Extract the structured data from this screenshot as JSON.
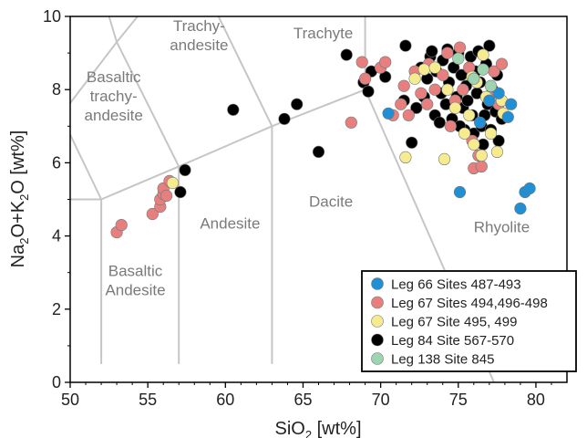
{
  "chart_data": {
    "type": "scatter",
    "title": "",
    "x_axis": {
      "label_main": "SiO",
      "label_sub": "2",
      "label_tail": " [wt%]",
      "min": 50,
      "max": 82,
      "ticks": [
        50,
        55,
        60,
        65,
        70,
        75,
        80
      ],
      "tick_labels": [
        "50",
        "55",
        "60",
        "65",
        "70",
        "75",
        "80"
      ]
    },
    "y_axis": {
      "label_parts": [
        "Na",
        "2",
        "O+K",
        "2",
        "O [wt%]"
      ],
      "min": 0,
      "max": 10,
      "ticks": [
        0,
        2,
        4,
        6,
        8,
        10
      ],
      "tick_labels": [
        "0",
        "2",
        "4",
        "6",
        "8",
        "10"
      ]
    },
    "tas_boundaries": [
      [
        [
          52,
          0.5
        ],
        [
          52,
          5
        ],
        [
          57,
          5.9
        ],
        [
          63,
          7
        ],
        [
          69,
          8
        ],
        [
          69,
          10
        ]
      ],
      [
        [
          50,
          5
        ],
        [
          52,
          5
        ]
      ],
      [
        [
          57,
          0.5
        ],
        [
          57,
          5.9
        ]
      ],
      [
        [
          63,
          0.5
        ],
        [
          63,
          7
        ]
      ],
      [
        [
          77.3,
          0
        ],
        [
          69,
          8
        ]
      ],
      [
        [
          52,
          5
        ],
        [
          49.4,
          7.3
        ]
      ],
      [
        [
          57,
          5.9
        ],
        [
          53,
          9.3
        ],
        [
          52.5,
          10
        ]
      ],
      [
        [
          63,
          7
        ],
        [
          57.6,
          11.7
        ]
      ],
      [
        [
          49.4,
          7.3
        ],
        [
          53,
          9.3
        ]
      ],
      [
        [
          53,
          9.3
        ],
        [
          57.6,
          11.7
        ]
      ]
    ],
    "region_labels": [
      {
        "id": "basaltic-trachyandesite",
        "lines": [
          "Basaltic",
          "trachy-",
          "andesite"
        ],
        "x": 52.8,
        "y": 8.2
      },
      {
        "id": "trachyandesite",
        "lines": [
          "Trachy-",
          "andesite"
        ],
        "x": 58.3,
        "y": 9.6
      },
      {
        "id": "trachyte",
        "lines": [
          "Trachyte"
        ],
        "x": 66.3,
        "y": 9.4
      },
      {
        "id": "andesite",
        "lines": [
          "Andesite"
        ],
        "x": 60.3,
        "y": 4.2
      },
      {
        "id": "dacite",
        "lines": [
          "Dacite"
        ],
        "x": 66.8,
        "y": 4.8
      },
      {
        "id": "rhyolite",
        "lines": [
          "Rhyolite"
        ],
        "x": 77.8,
        "y": 4.1
      },
      {
        "id": "basaltic-andesite",
        "lines": [
          "Basaltic",
          "Andesite"
        ],
        "x": 54.2,
        "y": 2.9
      }
    ],
    "legend": {
      "position": "bottom-right",
      "entries": [
        {
          "name": "Leg 66 Sites 487-493",
          "color": "#1f8fd6"
        },
        {
          "name": "Leg 67 Sites 494,496-498",
          "color": "#e67f7d"
        },
        {
          "name": "Leg 67 Site 495, 499",
          "color": "#f6ec8f"
        },
        {
          "name": "Leg 84 Site 567-570",
          "color": "#000000"
        },
        {
          "name": "Leg 138 Site 845",
          "color": "#9fd4b1"
        }
      ]
    },
    "series": [
      {
        "name": "Leg 84 Site 567-570",
        "color": "#000000",
        "points": [
          [
            57.1,
            5.2
          ],
          [
            57.4,
            5.8
          ],
          [
            60.5,
            7.45
          ],
          [
            63.8,
            7.2
          ],
          [
            64.6,
            7.6
          ],
          [
            66.0,
            6.3
          ],
          [
            67.8,
            8.95
          ],
          [
            68.9,
            8.2
          ],
          [
            69.2,
            7.95
          ],
          [
            69.4,
            8.5
          ],
          [
            70.3,
            8.35
          ],
          [
            71.5,
            7.7
          ],
          [
            71.6,
            9.2
          ],
          [
            72.0,
            6.55
          ],
          [
            72.3,
            7.5
          ],
          [
            72.8,
            7.8
          ],
          [
            73.0,
            8.3
          ],
          [
            73.2,
            8.9
          ],
          [
            73.5,
            7.3
          ],
          [
            73.6,
            8.5
          ],
          [
            73.8,
            7.1
          ],
          [
            74.0,
            8.8
          ],
          [
            74.2,
            7.6
          ],
          [
            74.4,
            8.2
          ],
          [
            74.6,
            7.2
          ],
          [
            74.7,
            8.6
          ],
          [
            74.9,
            7.8
          ],
          [
            75.0,
            9.0
          ],
          [
            75.2,
            8.4
          ],
          [
            75.3,
            7.5
          ],
          [
            75.4,
            6.9
          ],
          [
            75.5,
            8.1
          ],
          [
            75.6,
            7.7
          ],
          [
            75.8,
            8.9
          ],
          [
            75.9,
            7.3
          ],
          [
            76.0,
            6.8
          ],
          [
            76.1,
            8.5
          ],
          [
            76.2,
            7.9
          ],
          [
            76.4,
            8.2
          ],
          [
            76.5,
            7.0
          ],
          [
            76.6,
            6.5
          ],
          [
            76.8,
            8.7
          ],
          [
            76.9,
            7.6
          ],
          [
            77.0,
            9.2
          ],
          [
            77.1,
            6.9
          ],
          [
            77.2,
            8.0
          ],
          [
            77.4,
            7.4
          ],
          [
            77.5,
            8.4
          ],
          [
            77.6,
            6.6
          ],
          [
            77.8,
            7.2
          ],
          [
            73.3,
            9.05
          ],
          [
            74.3,
            9.1
          ],
          [
            76.3,
            9.05
          ],
          [
            72.6,
            8.6
          ],
          [
            73.9,
            7.9
          ],
          [
            75.1,
            7.0
          ],
          [
            76.7,
            7.3
          ]
        ]
      },
      {
        "name": "Leg 67 Sites 494,496-498",
        "color": "#e67f7d",
        "points": [
          [
            53.0,
            4.1
          ],
          [
            53.3,
            4.3
          ],
          [
            55.3,
            4.6
          ],
          [
            55.8,
            4.8
          ],
          [
            55.8,
            5.0
          ],
          [
            56.0,
            5.15
          ],
          [
            56.0,
            5.3
          ],
          [
            56.2,
            5.1
          ],
          [
            56.4,
            5.5
          ],
          [
            68.1,
            7.1
          ],
          [
            68.8,
            8.75
          ],
          [
            69.0,
            8.3
          ],
          [
            70.0,
            8.6
          ],
          [
            70.3,
            8.75
          ],
          [
            70.8,
            7.3
          ],
          [
            71.3,
            7.6
          ],
          [
            71.5,
            8.1
          ],
          [
            71.8,
            7.3
          ],
          [
            72.2,
            8.5
          ],
          [
            72.6,
            7.9
          ],
          [
            73.1,
            8.7
          ],
          [
            73.5,
            8.0
          ],
          [
            74.0,
            8.4
          ],
          [
            74.3,
            9.0
          ],
          [
            74.8,
            7.7
          ],
          [
            75.1,
            9.15
          ],
          [
            75.3,
            8.0
          ],
          [
            75.7,
            8.6
          ],
          [
            76.0,
            5.85
          ],
          [
            76.3,
            6.2
          ],
          [
            76.5,
            5.9
          ],
          [
            77.0,
            7.8
          ],
          [
            77.3,
            8.5
          ],
          [
            77.6,
            7.6
          ],
          [
            77.8,
            8.7
          ],
          [
            75.9,
            6.6
          ],
          [
            74.5,
            7.0
          ],
          [
            73.0,
            7.6
          ]
        ]
      },
      {
        "name": "Leg 67 Site 495, 499",
        "color": "#f6ec8f",
        "points": [
          [
            56.6,
            5.45
          ],
          [
            71.6,
            6.15
          ],
          [
            72.2,
            8.3
          ],
          [
            72.8,
            8.55
          ],
          [
            73.5,
            8.6
          ],
          [
            74.1,
            6.1
          ],
          [
            74.3,
            8.0
          ],
          [
            74.8,
            7.5
          ],
          [
            75.4,
            6.8
          ],
          [
            75.7,
            7.3
          ],
          [
            76.0,
            6.5
          ],
          [
            76.2,
            8.2
          ],
          [
            76.5,
            6.2
          ],
          [
            76.8,
            7.8
          ],
          [
            77.1,
            6.8
          ],
          [
            77.5,
            6.3
          ],
          [
            77.8,
            7.7
          ],
          [
            77.9,
            7.35
          ],
          [
            76.6,
            8.95
          ],
          [
            75.9,
            8.35
          ]
        ]
      },
      {
        "name": "Leg 66 Sites 487-493",
        "color": "#1f8fd6",
        "points": [
          [
            70.5,
            7.35
          ],
          [
            75.1,
            5.2
          ],
          [
            76.4,
            7.1
          ],
          [
            77.0,
            7.7
          ],
          [
            77.6,
            7.9
          ],
          [
            78.2,
            7.25
          ],
          [
            79.0,
            4.75
          ],
          [
            79.3,
            5.2
          ],
          [
            79.6,
            5.3
          ],
          [
            78.4,
            7.6
          ]
        ]
      },
      {
        "name": "Leg 138 Site 845",
        "color": "#9fd4b1",
        "points": [
          [
            75.0,
            8.85
          ],
          [
            76.0,
            8.3
          ],
          [
            76.6,
            8.55
          ],
          [
            77.1,
            8.1
          ]
        ]
      }
    ]
  }
}
